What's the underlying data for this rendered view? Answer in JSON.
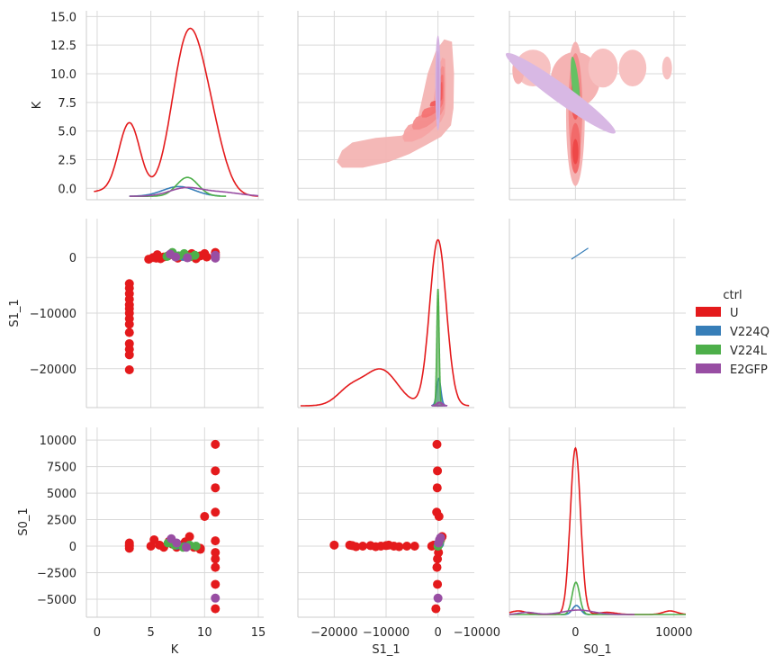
{
  "chart_data": {
    "type": "pairgrid",
    "variables": [
      "K",
      "S1_1",
      "S0_1"
    ],
    "axis_labels": {
      "K": "K",
      "S1_1": "S1_1",
      "S0_1": "S0_1"
    },
    "ranges": {
      "K": [
        -1,
        15.5
      ],
      "S1_1": [
        -27000,
        7000
      ],
      "S0_1": [
        -6700,
        11200
      ]
    },
    "ticks": {
      "K": [
        0,
        5,
        10,
        15
      ],
      "K_left": [
        0.0,
        2.5,
        5.0,
        7.5,
        10.0,
        12.5,
        15.0
      ],
      "S1_1": [
        -20000,
        -10000,
        0
      ],
      "S0_1": [
        -10000,
        0,
        10000
      ],
      "S0_1_left": [
        -5000,
        -2500,
        0,
        2500,
        5000,
        7500,
        10000
      ]
    },
    "tick_labels": {
      "K_bottom": [
        "0",
        "5",
        "10",
        "15"
      ],
      "K_left": [
        "0.0",
        "2.5",
        "5.0",
        "7.5",
        "10.0",
        "12.5",
        "15.0"
      ],
      "S1_1_bottom": [
        "−20000",
        "−10000",
        "0"
      ],
      "S1_1_left": [
        "−20000",
        "−10000",
        "0"
      ],
      "S0_1_bottom": [
        "−10000",
        "0",
        "10000"
      ],
      "S0_1_left": [
        "−5000",
        "−2500",
        "0",
        "2500",
        "5000",
        "7500",
        "10000"
      ]
    },
    "legend": {
      "title": "ctrl",
      "entries": [
        {
          "name": "U",
          "color": "#e41a1c"
        },
        {
          "name": "V224Q",
          "color": "#377eb8"
        },
        {
          "name": "V224L",
          "color": "#4daf4a"
        },
        {
          "name": "E2GFP",
          "color": "#984ea3"
        }
      ]
    },
    "grid": true,
    "lower_panels": {
      "K_vs_S1_1": {
        "U": [
          [
            3,
            -4700
          ],
          [
            3,
            -5500
          ],
          [
            3,
            -6500
          ],
          [
            3,
            -7500
          ],
          [
            3,
            -8500
          ],
          [
            3,
            -9200
          ],
          [
            3,
            -10000
          ],
          [
            3,
            -11000
          ],
          [
            3,
            -12000
          ],
          [
            3,
            -13500
          ],
          [
            3,
            -15500
          ],
          [
            3,
            -16500
          ],
          [
            3,
            -17500
          ],
          [
            3,
            -20200
          ],
          [
            4.8,
            -300
          ],
          [
            5.2,
            0
          ],
          [
            5.6,
            500
          ],
          [
            5.9,
            -200
          ],
          [
            6.2,
            100
          ],
          [
            6.6,
            300
          ],
          [
            7.0,
            600
          ],
          [
            7.5,
            -100
          ],
          [
            7.8,
            200
          ],
          [
            8.3,
            400
          ],
          [
            8.8,
            700
          ],
          [
            9.2,
            -200
          ],
          [
            9.6,
            300
          ],
          [
            10,
            700
          ],
          [
            10.2,
            100
          ],
          [
            11,
            600
          ],
          [
            11,
            200
          ],
          [
            11,
            900
          ],
          [
            5.5,
            -100
          ]
        ],
        "V224Q": [
          [
            7.2,
            400
          ],
          [
            8.0,
            200
          ]
        ],
        "V224L": [
          [
            6.5,
            200
          ],
          [
            7.0,
            900
          ],
          [
            7.6,
            300
          ],
          [
            8.1,
            700
          ],
          [
            8.6,
            100
          ],
          [
            9.1,
            400
          ]
        ],
        "E2GFP": [
          [
            6.8,
            600
          ],
          [
            7.3,
            100
          ],
          [
            8.4,
            -50
          ],
          [
            11,
            -100
          ],
          [
            11,
            400
          ]
        ]
      },
      "K_vs_S0_1": {
        "U": [
          [
            3,
            -200
          ],
          [
            3,
            0
          ],
          [
            3,
            100
          ],
          [
            3,
            300
          ],
          [
            5,
            0
          ],
          [
            5.3,
            600
          ],
          [
            5.8,
            100
          ],
          [
            6.2,
            -100
          ],
          [
            6.7,
            450
          ],
          [
            7.0,
            200
          ],
          [
            7.4,
            -100
          ],
          [
            7.8,
            100
          ],
          [
            8.2,
            400
          ],
          [
            8.6,
            900
          ],
          [
            9.0,
            -100
          ],
          [
            9.6,
            -300
          ],
          [
            10,
            2800
          ],
          [
            11,
            9600
          ],
          [
            11,
            7100
          ],
          [
            11,
            5500
          ],
          [
            11,
            3200
          ],
          [
            11,
            500
          ],
          [
            11,
            -600
          ],
          [
            11,
            -1200
          ],
          [
            11,
            -2000
          ],
          [
            11,
            -3600
          ],
          [
            11,
            -5900
          ],
          [
            9.6,
            -200
          ]
        ],
        "V224Q": [
          [
            7.4,
            100
          ],
          [
            8.1,
            -50
          ]
        ],
        "V224L": [
          [
            6.6,
            300
          ],
          [
            7.2,
            100
          ],
          [
            8.0,
            -100
          ],
          [
            8.6,
            100
          ],
          [
            9.2,
            0
          ]
        ],
        "E2GFP": [
          [
            6.9,
            700
          ],
          [
            7.4,
            300
          ],
          [
            8.3,
            -100
          ],
          [
            11,
            -4900
          ]
        ]
      },
      "S1_1_vs_S0_1": {
        "U": [
          [
            -20000,
            100
          ],
          [
            -17000,
            100
          ],
          [
            -16500,
            50
          ],
          [
            -15800,
            -50
          ],
          [
            -14500,
            0
          ],
          [
            -13000,
            50
          ],
          [
            -12000,
            -50
          ],
          [
            -11000,
            0
          ],
          [
            -10000,
            50
          ],
          [
            -9500,
            100
          ],
          [
            -8500,
            0
          ],
          [
            -7500,
            -50
          ],
          [
            -6000,
            0
          ],
          [
            -4500,
            0
          ],
          [
            -200,
            9600
          ],
          [
            -100,
            7100
          ],
          [
            -150,
            5500
          ],
          [
            -250,
            3200
          ],
          [
            200,
            2800
          ],
          [
            100,
            -600
          ],
          [
            -100,
            -1200
          ],
          [
            -200,
            -2000
          ],
          [
            -100,
            -3600
          ],
          [
            -400,
            -5900
          ],
          [
            -800,
            100
          ],
          [
            300,
            300
          ],
          [
            500,
            600
          ],
          [
            800,
            900
          ],
          [
            -1200,
            0
          ]
        ],
        "V224Q": [
          [
            100,
            100
          ],
          [
            300,
            200
          ]
        ],
        "V224L": [
          [
            0,
            0
          ],
          [
            200,
            300
          ],
          [
            400,
            500
          ]
        ],
        "E2GFP": [
          [
            0,
            -4900
          ],
          [
            100,
            300
          ],
          [
            300,
            600
          ],
          [
            500,
            800
          ]
        ]
      }
    }
  }
}
